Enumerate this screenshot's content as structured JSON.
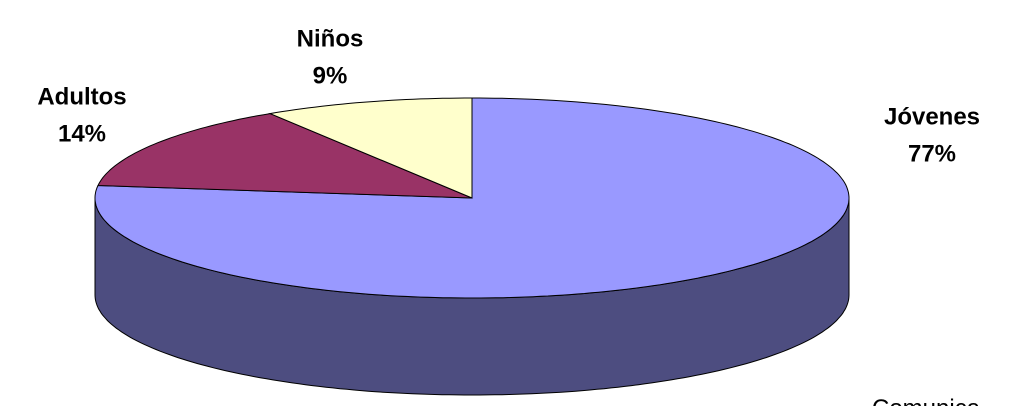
{
  "chart_data": {
    "type": "pie3d",
    "categories": [
      "Jóvenes",
      "Adultos",
      "Niños"
    ],
    "values": [
      77,
      14,
      9
    ],
    "value_labels": [
      "77%",
      "14%",
      "9%"
    ],
    "colors": [
      "#9999ff",
      "#993366",
      "#ffffcc"
    ],
    "annotation": "Comunica"
  }
}
